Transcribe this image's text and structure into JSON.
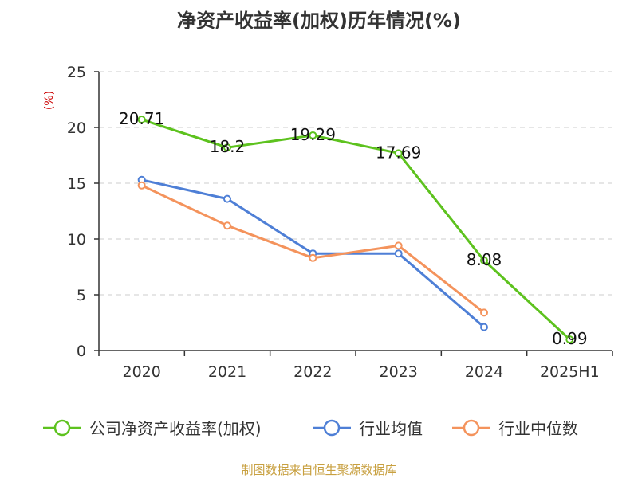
{
  "chart_data": {
    "type": "line",
    "title": "净资产收益率(加权)历年情况(%)",
    "ylabel": "(%)",
    "categories": [
      "2020",
      "2021",
      "2022",
      "2023",
      "2024",
      "2025H1"
    ],
    "ylim": [
      0,
      25
    ],
    "yticks": [
      0,
      5,
      10,
      15,
      20,
      25
    ],
    "grid": true,
    "legend_position": "bottom",
    "series": [
      {
        "name": "公司净资产收益率(加权)",
        "color": "#5dc21e",
        "values": [
          20.71,
          18.2,
          19.29,
          17.69,
          8.08,
          0.99
        ],
        "labels": [
          "20.71",
          "18.2",
          "19.29",
          "17.69",
          "8.08",
          "0.99"
        ]
      },
      {
        "name": "行业均值",
        "color": "#4e7fd6",
        "values": [
          15.3,
          13.6,
          8.7,
          8.7,
          2.1,
          null
        ]
      },
      {
        "name": "行业中位数",
        "color": "#f4935c",
        "values": [
          14.8,
          11.2,
          8.3,
          9.4,
          3.4,
          null
        ]
      }
    ]
  },
  "source": "制图数据来自恒生聚源数据库"
}
